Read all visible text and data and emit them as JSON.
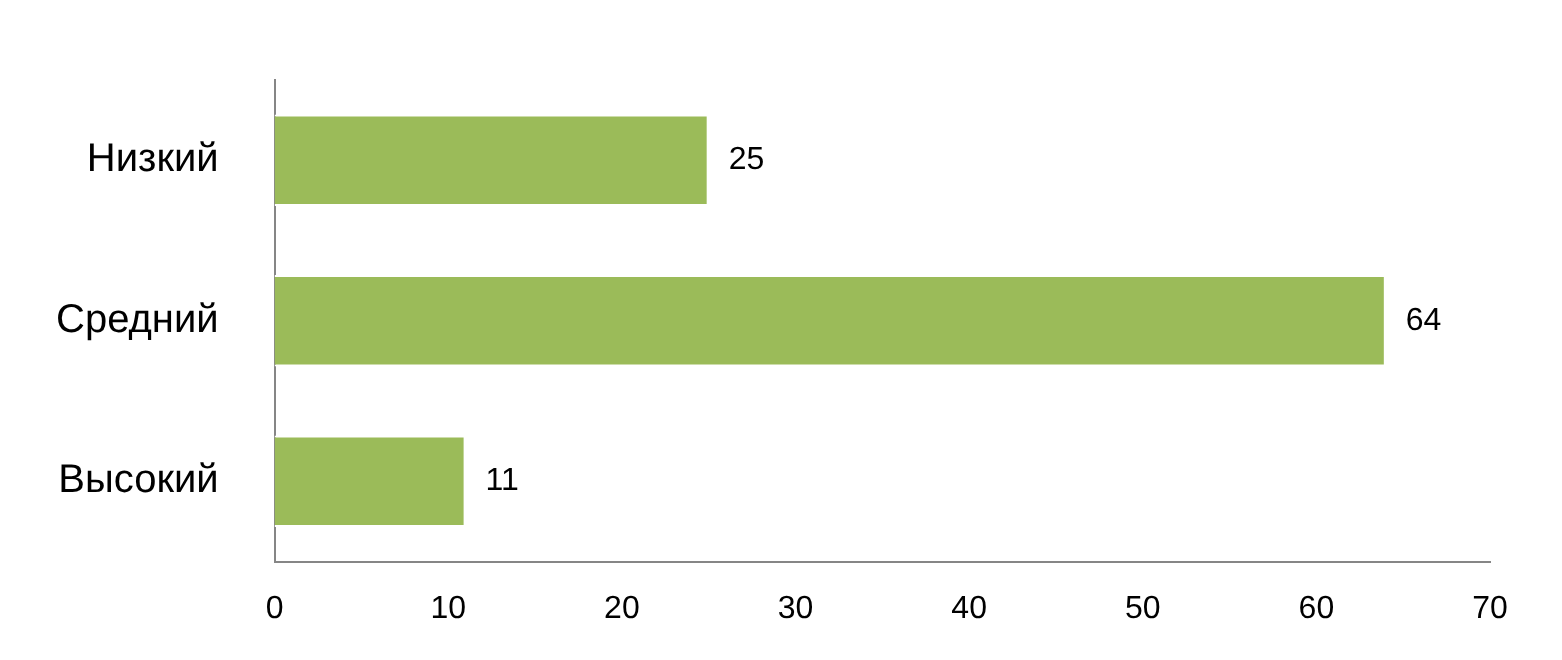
{
  "chart_data": {
    "type": "bar",
    "orientation": "horizontal",
    "categories": [
      "Низкий",
      "Средний",
      "Высокий"
    ],
    "values": [
      25,
      64,
      11
    ],
    "color": "#9bbb59",
    "xlim": [
      0,
      70
    ],
    "xticks": [
      0,
      10,
      20,
      30,
      40,
      50,
      60,
      70
    ],
    "grid": false,
    "legend": false,
    "data_labels": true
  }
}
